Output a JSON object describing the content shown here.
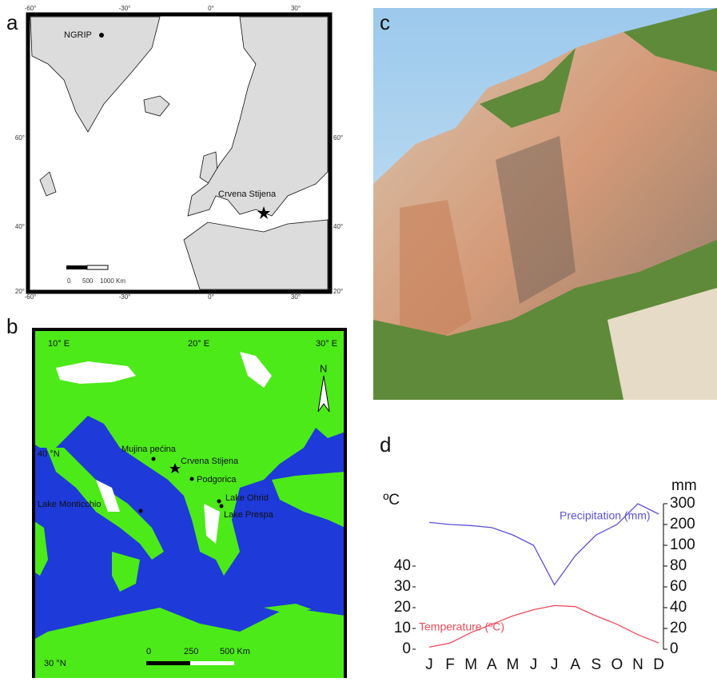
{
  "panels": {
    "a": {
      "label": "a",
      "ngrip": "NGRIP",
      "site": "Crvena Stijena",
      "lon_ticks": [
        "-60°",
        "-30°",
        "0°",
        "30°"
      ],
      "lat_ticks": [
        "60°",
        "40°",
        "20°"
      ],
      "scale": [
        "0",
        "500",
        "1000 Km"
      ]
    },
    "b": {
      "label": "b",
      "lon_ticks": [
        "10° E",
        "20° E",
        "30° E"
      ],
      "lat_ticks": [
        "40 °N",
        "30 °N"
      ],
      "north": "N",
      "places": [
        "Mujina pećina",
        "Crvena Stijena",
        "Podgorica",
        "Lake Ohrid",
        "Lake Prespa",
        "Lake Monticchio"
      ],
      "scale": [
        "0",
        "250",
        "500 Km"
      ]
    },
    "c": {
      "label": "c"
    },
    "d": {
      "label": "d"
    }
  },
  "chart_data": {
    "type": "line",
    "categories": [
      "J",
      "F",
      "M",
      "A",
      "M",
      "J",
      "J",
      "A",
      "S",
      "O",
      "N",
      "D"
    ],
    "ylabel": "ºC",
    "y2label": "mm",
    "ylim": [
      0,
      40
    ],
    "yticks": [
      0,
      10,
      20,
      30,
      40
    ],
    "y2lim": [
      0,
      300
    ],
    "y2ticks": [
      0,
      20,
      40,
      60,
      80,
      100,
      200,
      300
    ],
    "series": [
      {
        "name": "Precipitation (mm)",
        "color": "#5b4fd6",
        "axis": "y2",
        "values": [
          210,
          200,
          195,
          185,
          150,
          100,
          62,
          90,
          150,
          200,
          300,
          250
        ]
      },
      {
        "name": "Temperature (ºC)",
        "color": "#ef4a5a",
        "values": [
          1,
          3,
          8,
          12,
          16,
          19,
          21,
          20.5,
          16,
          12,
          7,
          3
        ]
      }
    ]
  }
}
